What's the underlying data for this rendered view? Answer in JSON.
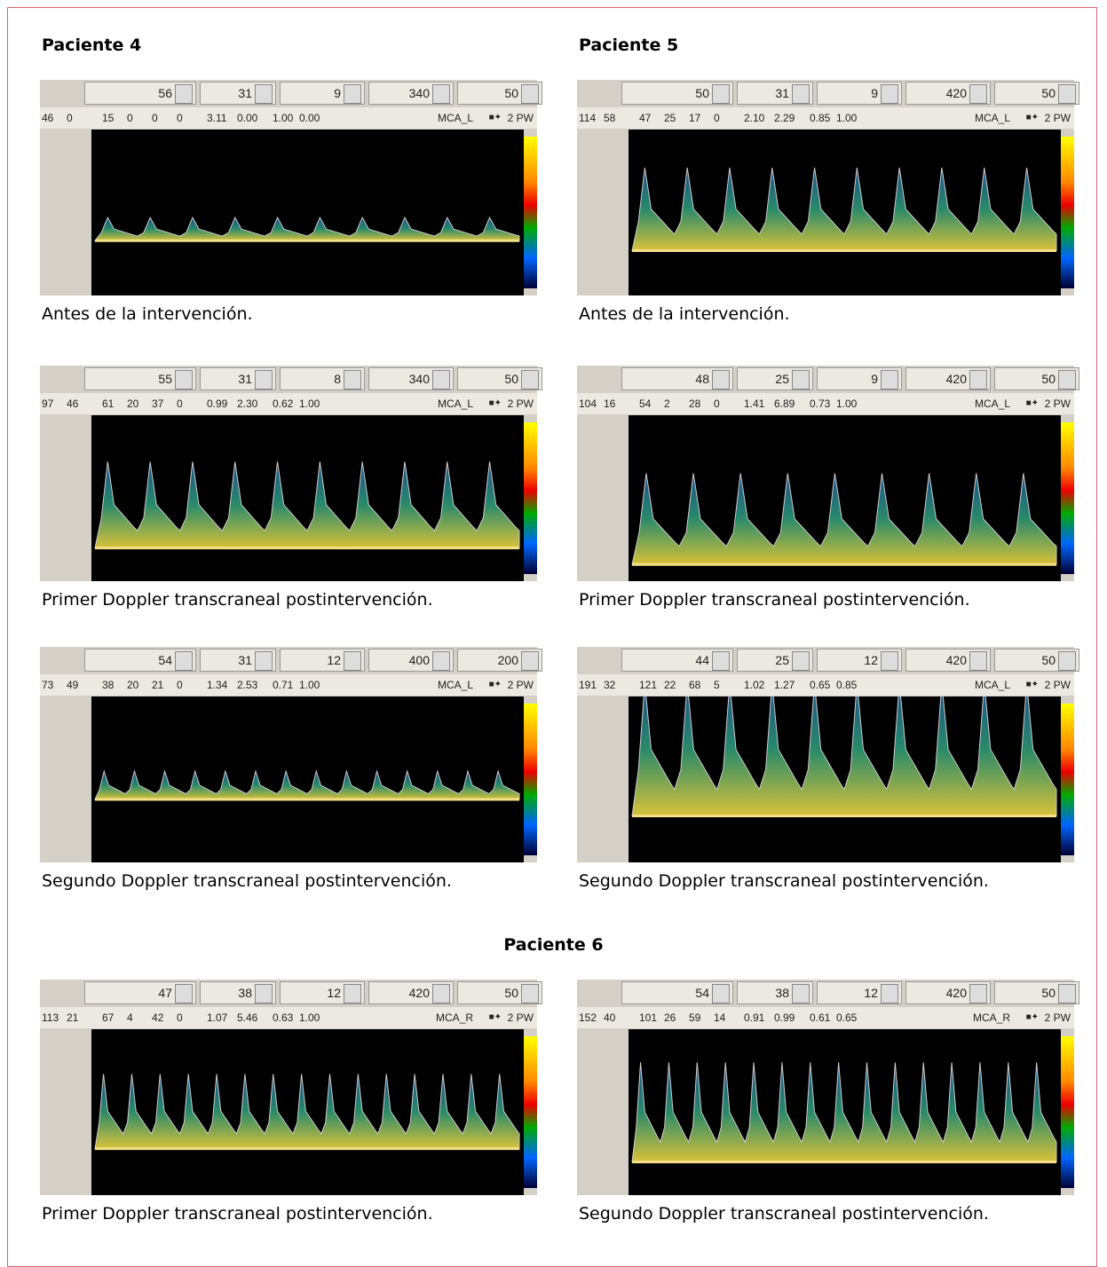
{
  "headings": [
    "Paciente 4",
    "Paciente 5",
    "Paciente 6"
  ],
  "panels": [
    {
      "controls": [
        56,
        31,
        9,
        340,
        50
      ],
      "measurements": [
        "46",
        "0",
        "15",
        "0",
        "0",
        "0",
        "3.11",
        "0.00",
        "1.00",
        "0.00"
      ],
      "vessel": "MCA_L",
      "mode": "2 PW",
      "caption": "Antes de la intervención."
    },
    {
      "controls": [
        50,
        31,
        9,
        420,
        50
      ],
      "measurements": [
        "114",
        "58",
        "47",
        "25",
        "17",
        "0",
        "2.10",
        "2.29",
        "0.85",
        "1.00"
      ],
      "vessel": "MCA_L",
      "mode": "2 PW",
      "caption": "Antes de la intervención."
    },
    {
      "controls": [
        55,
        31,
        8,
        340,
        50
      ],
      "measurements": [
        "97",
        "46",
        "61",
        "20",
        "37",
        "0",
        "0.99",
        "2.30",
        "0.62",
        "1.00"
      ],
      "vessel": "MCA_L",
      "mode": "2 PW",
      "caption": "Primer Doppler transcraneal postintervención."
    },
    {
      "controls": [
        48,
        25,
        9,
        420,
        50
      ],
      "measurements": [
        "104",
        "16",
        "54",
        "2",
        "28",
        "0",
        "1.41",
        "6.89",
        "0.73",
        "1.00"
      ],
      "vessel": "MCA_L",
      "mode": "2 PW",
      "caption": "Primer Doppler transcraneal postintervención."
    },
    {
      "controls": [
        54,
        31,
        12,
        400,
        200
      ],
      "measurements": [
        "73",
        "49",
        "38",
        "20",
        "21",
        "0",
        "1.34",
        "2.53",
        "0.71",
        "1.00"
      ],
      "vessel": "MCA_L",
      "mode": "2 PW",
      "caption": "Segundo Doppler transcraneal postintervención."
    },
    {
      "controls": [
        44,
        25,
        12,
        420,
        50
      ],
      "measurements": [
        "191",
        "32",
        "121",
        "22",
        "68",
        "5",
        "1.02",
        "1.27",
        "0.65",
        "0.85"
      ],
      "vessel": "MCA_L",
      "mode": "2 PW",
      "caption": "Segundo Doppler transcraneal postintervención."
    },
    {
      "controls": [
        47,
        38,
        12,
        420,
        50
      ],
      "measurements": [
        "113",
        "21",
        "67",
        "4",
        "42",
        "0",
        "1.07",
        "5.46",
        "0.63",
        "1.00"
      ],
      "vessel": "MCA_R",
      "mode": "2 PW",
      "caption": "Primer Doppler transcraneal postintervención."
    },
    {
      "controls": [
        54,
        38,
        12,
        420,
        50
      ],
      "measurements": [
        "152",
        "40",
        "101",
        "26",
        "59",
        "14",
        "0.91",
        "0.99",
        "0.61",
        "0.65"
      ],
      "vessel": "MCA_R",
      "mode": "2 PW",
      "caption": "Segundo Doppler transcraneal postintervención."
    }
  ]
}
